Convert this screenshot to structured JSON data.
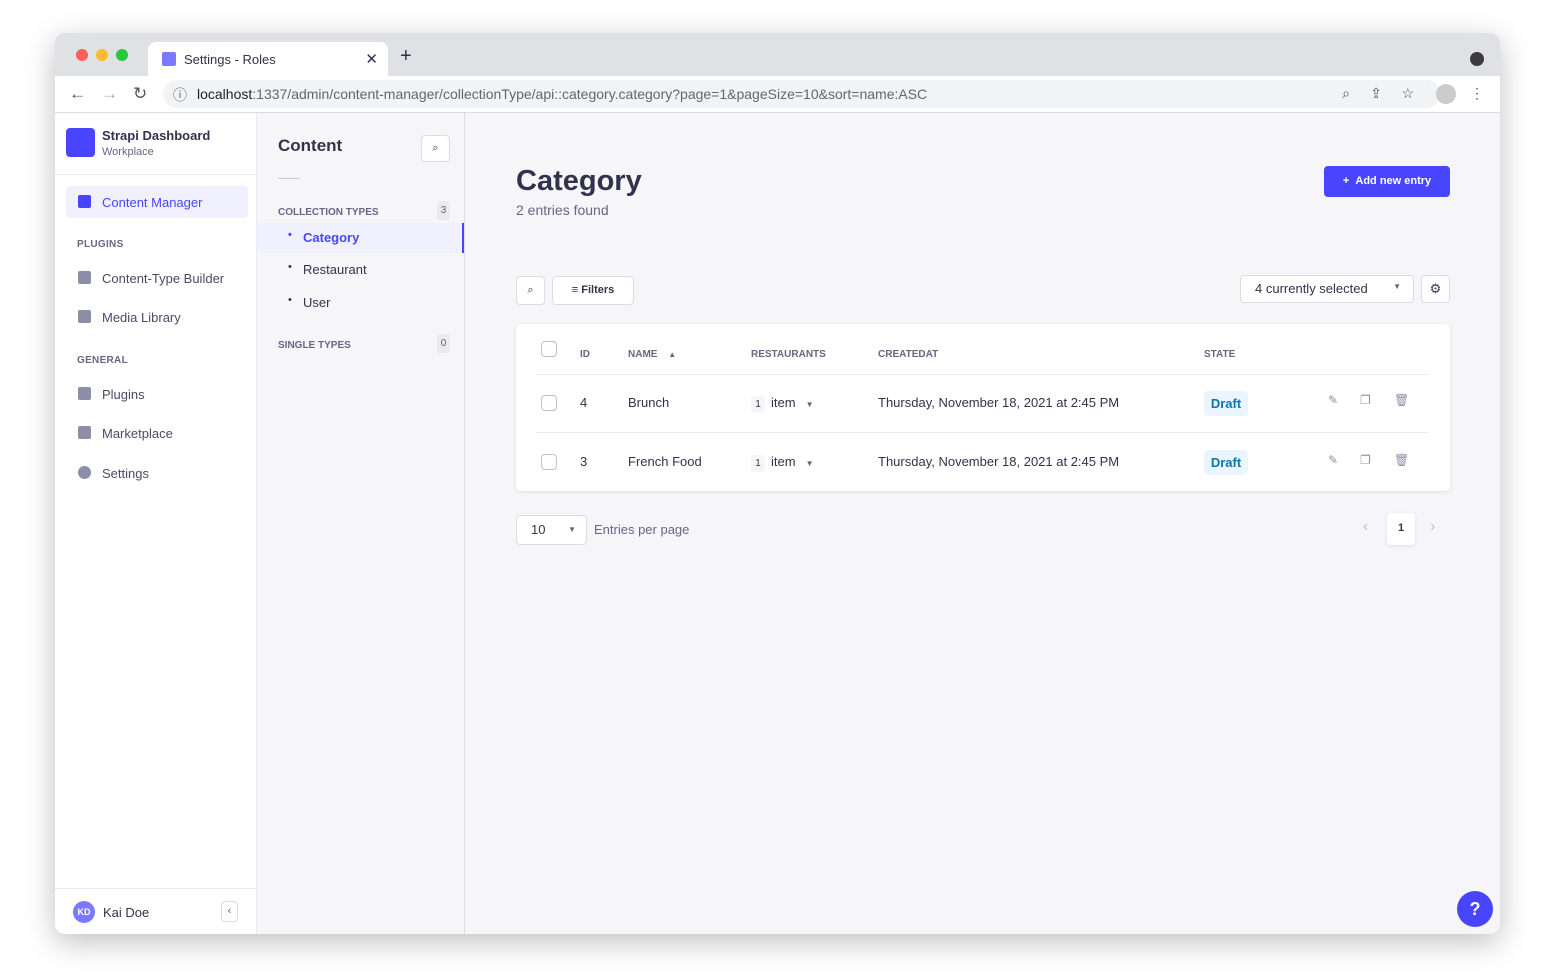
{
  "browser": {
    "tab_title": "Settings - Roles",
    "url_host": "localhost",
    "url_rest": ":1337/admin/content-manager/collectionType/api::category.category?page=1&pageSize=10&sort=name:ASC"
  },
  "sidebar": {
    "brand": "Strapi Dashboard",
    "workspace": "Workplace",
    "active": "Content Manager",
    "plugins_label": "PLUGINS",
    "plugins": [
      "Content-Type Builder",
      "Media Library"
    ],
    "general_label": "GENERAL",
    "general": [
      "Plugins",
      "Marketplace",
      "Settings"
    ],
    "user_initials": "KD",
    "user_name": "Kai Doe"
  },
  "subnav": {
    "title": "Content",
    "collection_label": "COLLECTION TYPES",
    "collection_count": "3",
    "collections": [
      "Category",
      "Restaurant",
      "User"
    ],
    "single_label": "SINGLE TYPES",
    "single_count": "0"
  },
  "main": {
    "title": "Category",
    "subtitle": "2 entries found",
    "add_label": "Add new entry",
    "filters_label": "Filters",
    "columns_selected": "4 currently selected",
    "headers": {
      "id": "ID",
      "name": "NAME",
      "restaurants": "RESTAURANTS",
      "createdat": "CREATEDAT",
      "state": "STATE"
    },
    "rows": [
      {
        "id": "4",
        "name": "Brunch",
        "count": "1",
        "unit": "item",
        "created": "Thursday, November 18, 2021 at 2:45 PM",
        "state": "Draft"
      },
      {
        "id": "3",
        "name": "French Food",
        "count": "1",
        "unit": "item",
        "created": "Thursday, November 18, 2021 at 2:45 PM",
        "state": "Draft"
      }
    ],
    "page_size": "10",
    "entries_per_page": "Entries per page",
    "current_page": "1"
  },
  "colors": {
    "primary": "#4945ff",
    "draft_bg": "#eaf5ff",
    "draft_text": "#0c75af"
  }
}
